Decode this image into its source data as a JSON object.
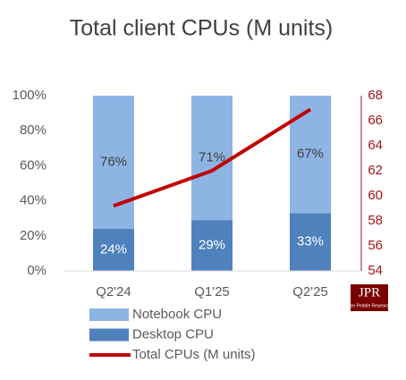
{
  "chart_data": {
    "type": "bar",
    "stacked": true,
    "title": "Total client CPUs (M units)",
    "categories": [
      "Q2'24",
      "Q1'25",
      "Q2'25"
    ],
    "series": [
      {
        "name": "Desktop CPU",
        "color": "#4f81bd",
        "values": [
          24,
          29,
          33
        ],
        "value_labels": [
          "24%",
          "29%",
          "33%"
        ],
        "label_color": "#ffffff"
      },
      {
        "name": "Notebook CPU",
        "color": "#8eb4e3",
        "values": [
          76,
          71,
          67
        ],
        "value_labels": [
          "76%",
          "71%",
          "67%"
        ],
        "label_color": "#404040"
      },
      {
        "name": "Total CPUs (M units)",
        "type": "line",
        "axis": "y2",
        "color": "#c00000",
        "values": [
          59.2,
          62,
          66.9
        ]
      }
    ],
    "ylim": [
      0,
      100
    ],
    "yticks": [
      {
        "value": 0,
        "label": "0%"
      },
      {
        "value": 20,
        "label": "20%"
      },
      {
        "value": 40,
        "label": "40%"
      },
      {
        "value": 60,
        "label": "60%"
      },
      {
        "value": 80,
        "label": "80%"
      },
      {
        "value": 100,
        "label": "100%"
      }
    ],
    "y2lim": [
      54,
      68
    ],
    "y2ticks": [
      54,
      56,
      58,
      60,
      62,
      64,
      66,
      68
    ],
    "y2_color": "#a5141a",
    "grid": false,
    "legend": "bottom",
    "annotations": [
      "JPR",
      "Jon Peddie Research"
    ]
  }
}
